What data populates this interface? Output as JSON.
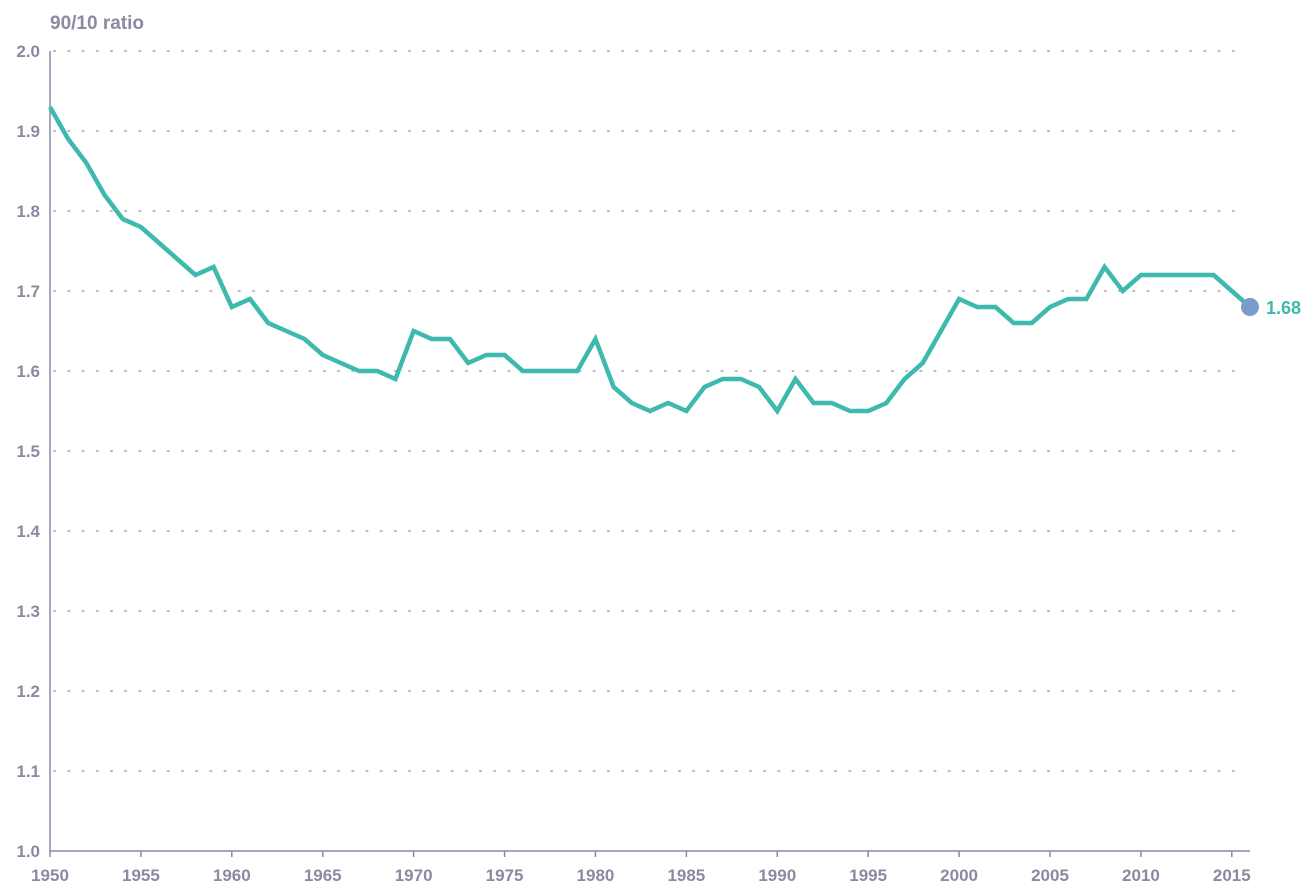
{
  "chart_data": {
    "type": "line",
    "title": "",
    "ylabel": "90/10 ratio",
    "xlabel": "",
    "xlim": [
      1950,
      2016
    ],
    "ylim": [
      1.0,
      2.0
    ],
    "x_ticks": [
      1950,
      1955,
      1960,
      1965,
      1970,
      1975,
      1980,
      1985,
      1990,
      1995,
      2000,
      2005,
      2010,
      2015
    ],
    "x_tick_labels": [
      "1950",
      "1955",
      "1960",
      "1965",
      "1970",
      "1975",
      "1980",
      "1985",
      "1990",
      "1995",
      "2000",
      "2005",
      "2010",
      "2015"
    ],
    "y_ticks": [
      1.0,
      1.1,
      1.2,
      1.3,
      1.4,
      1.5,
      1.6,
      1.7,
      1.8,
      1.9,
      2.0
    ],
    "y_tick_labels": [
      "1.0",
      "1.1",
      "1.2",
      "1.3",
      "1.4",
      "1.5",
      "1.6",
      "1.7",
      "1.8",
      "1.9",
      "2.0"
    ],
    "grid": "horizontal-dotted",
    "series": [
      {
        "x": [
          1950,
          1951,
          1952,
          1953,
          1954,
          1955,
          1956,
          1957,
          1958,
          1959,
          1960,
          1961,
          1962,
          1963,
          1964,
          1965,
          1966,
          1967,
          1968,
          1969,
          1970,
          1971,
          1972,
          1973,
          1974,
          1975,
          1976,
          1977,
          1978,
          1979,
          1980,
          1981,
          1982,
          1983,
          1984,
          1985,
          1986,
          1987,
          1988,
          1989,
          1990,
          1991,
          1992,
          1993,
          1994,
          1995,
          1996,
          1997,
          1998,
          1999,
          2000,
          2001,
          2002,
          2003,
          2004,
          2005,
          2006,
          2007,
          2008,
          2009,
          2010,
          2011,
          2012,
          2013,
          2014,
          2015,
          2016
        ],
        "values": [
          1.93,
          1.89,
          1.86,
          1.82,
          1.79,
          1.78,
          1.76,
          1.74,
          1.72,
          1.73,
          1.68,
          1.69,
          1.66,
          1.65,
          1.64,
          1.62,
          1.61,
          1.6,
          1.6,
          1.59,
          1.65,
          1.64,
          1.64,
          1.61,
          1.62,
          1.62,
          1.6,
          1.6,
          1.6,
          1.6,
          1.64,
          1.58,
          1.56,
          1.55,
          1.56,
          1.55,
          1.58,
          1.59,
          1.59,
          1.58,
          1.55,
          1.59,
          1.56,
          1.56,
          1.55,
          1.55,
          1.56,
          1.59,
          1.61,
          1.65,
          1.69,
          1.68,
          1.68,
          1.66,
          1.66,
          1.68,
          1.69,
          1.69,
          1.73,
          1.7,
          1.72,
          1.72,
          1.72,
          1.72,
          1.72,
          1.7,
          1.68
        ]
      }
    ],
    "end_point": {
      "x": 2016,
      "value": 1.68,
      "label": "1.68"
    }
  },
  "colors": {
    "line": "#3db9ae",
    "end_marker": "#7a9cc8",
    "end_label": "#3db9ae",
    "axis_text": "#8a8aa2",
    "grid": "#b8b8c4",
    "axis_line": "#8a8aa2"
  }
}
